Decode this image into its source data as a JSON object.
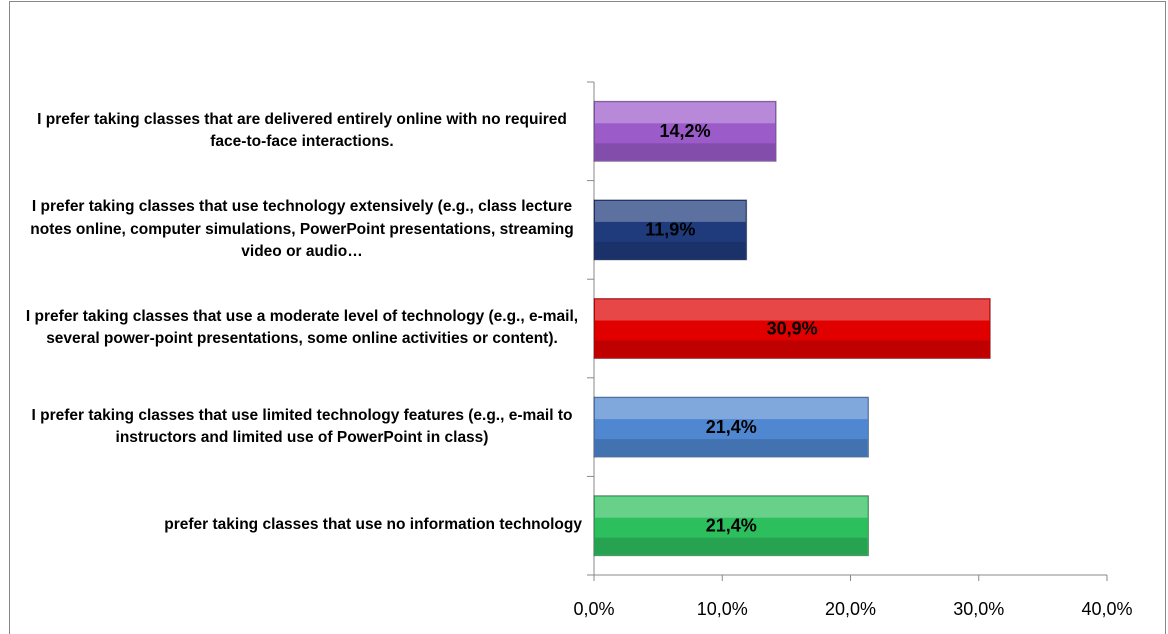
{
  "chart_data": {
    "type": "bar",
    "orientation": "horizontal",
    "categories": [
      "I prefer taking classes that are delivered entirely online with no required face-to-face interactions.",
      "I prefer taking classes that use technology extensively (e.g., class lecture notes online, computer simulations, PowerPoint presentations, streaming video or audio…",
      "I prefer taking classes that use a moderate level of technology (e.g., e-mail, several power-point presentations, some online activities or content).",
      "I prefer taking classes that use limited technology features (e.g., e-mail to instructors and limited use of PowerPoint in class)",
      "prefer taking classes that use no information technology"
    ],
    "values": [
      14.2,
      11.9,
      30.9,
      21.4,
      21.4
    ],
    "value_labels": [
      "14,2%",
      "11,9%",
      "30,9%",
      "21,4%",
      "21,4%"
    ],
    "colors": [
      "#9b5cc9",
      "#1f3b7c",
      "#e00000",
      "#4f87d0",
      "#2dbf5e"
    ],
    "xlim": [
      0,
      40
    ],
    "xticks": [
      {
        "value": 0,
        "label": "0,0%"
      },
      {
        "value": 10,
        "label": "10,0%"
      },
      {
        "value": 20,
        "label": "20,0%"
      },
      {
        "value": 30,
        "label": "30,0%"
      },
      {
        "value": 40,
        "label": "40,0%"
      }
    ]
  }
}
